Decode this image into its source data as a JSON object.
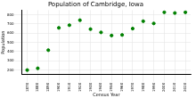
{
  "chart_data": {
    "type": "scatter",
    "title": "Population of Cambridge, Iowa",
    "x_label": "Census Year",
    "y_label": "Population",
    "x": [
      1870,
      1880,
      1890,
      1900,
      1910,
      1920,
      1930,
      1940,
      1950,
      1960,
      1970,
      1980,
      1990,
      2000,
      2010,
      2020
    ],
    "values": [
      200,
      219,
      416,
      658,
      687,
      741,
      644,
      609,
      575,
      581,
      650,
      730,
      706,
      827,
      819,
      827
    ],
    "color": "#008000",
    "marker": "circle",
    "xlim": [
      1865,
      2025
    ],
    "xticks": [
      1870,
      1880,
      1890,
      1900,
      1910,
      1920,
      1930,
      1940,
      1950,
      1960,
      1970,
      1980,
      1990,
      2000,
      2010,
      2020
    ],
    "ylim": [
      150,
      850
    ],
    "yticks": [
      200,
      300,
      400,
      500,
      600,
      700,
      800
    ],
    "grid": true
  }
}
